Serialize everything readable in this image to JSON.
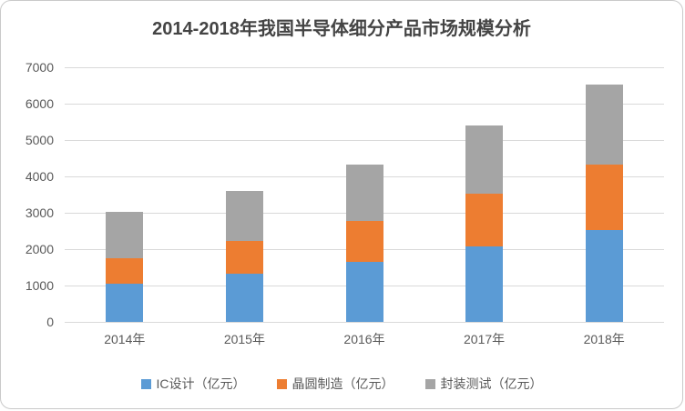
{
  "chart_data": {
    "type": "bar",
    "stacked": true,
    "title": "2014-2018年我国半导体细分产品市场规模分析",
    "categories": [
      "2014年",
      "2015年",
      "2016年",
      "2017年",
      "2018年"
    ],
    "series": [
      {
        "name": "IC设计（亿元）",
        "color": "#5B9BD5",
        "values": [
          1047,
          1325,
          1644,
          2074,
          2519
        ]
      },
      {
        "name": "晶圆制造（亿元）",
        "color": "#ED7D31",
        "values": [
          712,
          901,
          1127,
          1448,
          1818
        ]
      },
      {
        "name": "封装测试（亿元）",
        "color": "#A5A5A5",
        "values": [
          1256,
          1384,
          1564,
          1890,
          2194
        ]
      }
    ],
    "totals": [
      3015,
      3610,
      4335,
      5412,
      6531
    ],
    "ylim": [
      0,
      7000
    ],
    "ytick_step": 1000,
    "yticks": [
      "0",
      "1000",
      "2000",
      "3000",
      "4000",
      "5000",
      "6000",
      "7000"
    ],
    "xlabel": "",
    "ylabel": "",
    "grid": true,
    "legend_position": "bottom",
    "colors": {
      "gridline": "#D9D9D9",
      "axis_text": "#595959",
      "title_text": "#444444",
      "card_border": "#C9C9C9"
    }
  }
}
